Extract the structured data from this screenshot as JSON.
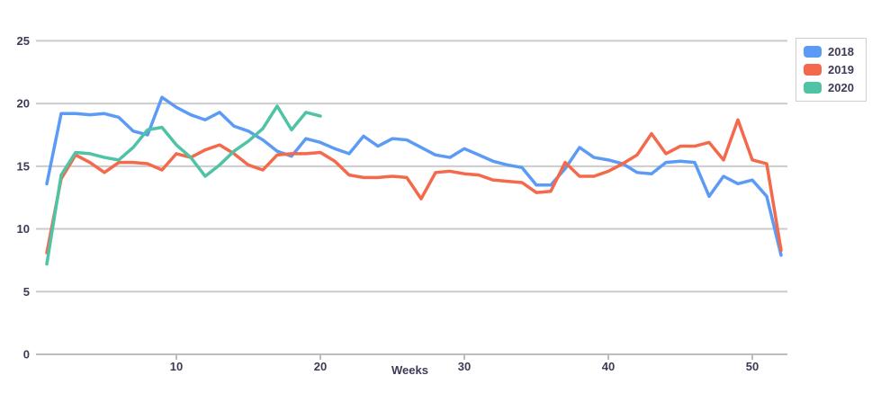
{
  "chart_data": {
    "type": "line",
    "title": "",
    "xlabel": "Weeks",
    "ylabel": "",
    "xlim": [
      0,
      52
    ],
    "ylim": [
      0,
      25
    ],
    "x_ticks": [
      10,
      20,
      30,
      40,
      50
    ],
    "y_ticks": [
      0,
      5,
      10,
      15,
      20,
      25
    ],
    "grid": "horizontal",
    "legend_position": "top-right",
    "x_unit": "week",
    "x": [
      1,
      2,
      3,
      4,
      5,
      6,
      7,
      8,
      9,
      10,
      11,
      12,
      13,
      14,
      15,
      16,
      17,
      18,
      19,
      20,
      21,
      22,
      23,
      24,
      25,
      26,
      27,
      28,
      29,
      30,
      31,
      32,
      33,
      34,
      35,
      36,
      37,
      38,
      39,
      40,
      41,
      42,
      43,
      44,
      45,
      46,
      47,
      48,
      49,
      50,
      51,
      52
    ],
    "series": [
      {
        "name": "2018",
        "color": "#5B9BF5",
        "values": [
          13.6,
          19.2,
          19.2,
          19.1,
          19.2,
          18.9,
          17.8,
          17.5,
          20.5,
          19.7,
          19.1,
          18.7,
          19.3,
          18.2,
          17.8,
          17.1,
          16.2,
          15.8,
          17.2,
          16.9,
          16.4,
          16.0,
          17.4,
          16.6,
          17.2,
          17.1,
          16.5,
          15.9,
          15.7,
          16.4,
          15.9,
          15.4,
          15.1,
          14.9,
          13.5,
          13.5,
          14.8,
          16.5,
          15.7,
          15.5,
          15.2,
          14.5,
          14.4,
          15.3,
          15.4,
          15.3,
          12.6,
          14.2,
          13.6,
          13.9,
          12.6,
          7.9
        ]
      },
      {
        "name": "2019",
        "color": "#F4694C",
        "values": [
          8.1,
          14.0,
          15.9,
          15.3,
          14.5,
          15.3,
          15.3,
          15.2,
          14.7,
          16.0,
          15.7,
          16.3,
          16.7,
          16.0,
          15.1,
          14.7,
          15.9,
          16.0,
          16.0,
          16.1,
          15.4,
          14.3,
          14.1,
          14.1,
          14.2,
          14.1,
          12.4,
          14.5,
          14.6,
          14.4,
          14.3,
          13.9,
          13.8,
          13.7,
          12.9,
          13.0,
          15.3,
          14.2,
          14.2,
          14.6,
          15.2,
          15.9,
          17.6,
          16.0,
          16.6,
          16.6,
          16.9,
          15.5,
          18.7,
          15.5,
          15.2,
          8.3
        ]
      },
      {
        "name": "2020",
        "color": "#4EC3A5",
        "values": [
          7.2,
          14.3,
          16.1,
          16.0,
          15.7,
          15.5,
          16.5,
          17.9,
          18.1,
          16.7,
          15.7,
          14.2,
          15.1,
          16.2,
          17.0,
          18.0,
          19.8,
          17.9,
          19.3,
          19.0
        ]
      }
    ]
  },
  "colors": {
    "grid": "#cbcbcb",
    "axis": "#bdbdbd",
    "text": "#3d3b54",
    "legend_border": "#cfcfcf",
    "background": "#ffffff"
  }
}
